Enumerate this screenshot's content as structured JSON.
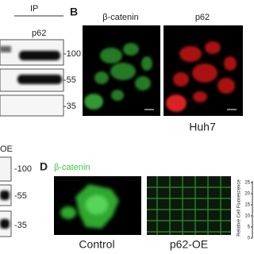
{
  "panel_a": {
    "header": "IP",
    "lane_label": "p62",
    "markers": [
      "-100",
      "-55",
      "-35"
    ]
  },
  "panel_b": {
    "letter": "B",
    "channels": [
      "β-catenin",
      "p62"
    ],
    "cell_line": "Huh7"
  },
  "panel_c": {
    "lane_label": "OE",
    "markers": [
      "-100",
      "-55",
      "-35"
    ]
  },
  "panel_d": {
    "letter": "D",
    "stain": "β-catenin",
    "conditions": [
      "Control",
      "p62-OE"
    ],
    "axis_label": "Relative Cell Fluorescence",
    "axis_ticks": [
      "25",
      "20",
      "15",
      "10",
      "5",
      "0"
    ]
  }
}
